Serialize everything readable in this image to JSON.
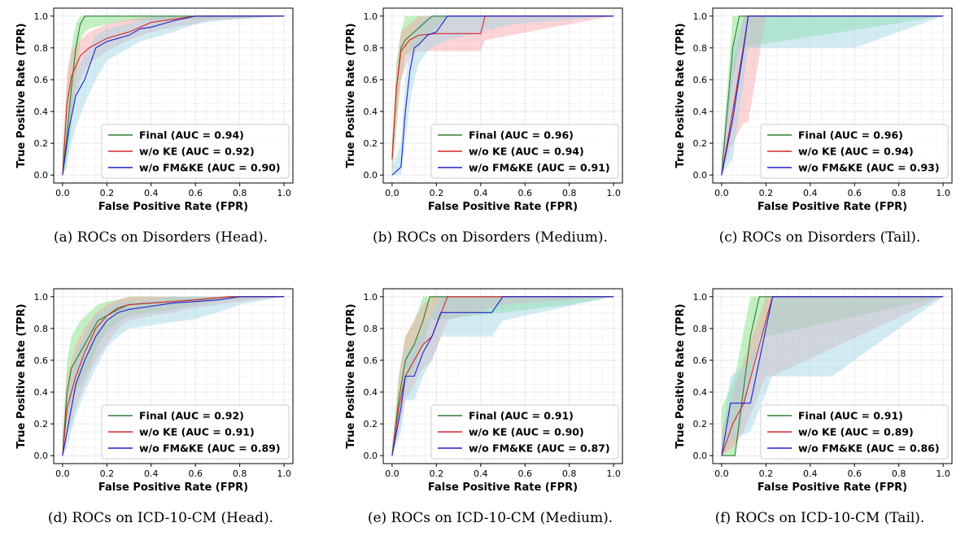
{
  "figure": {
    "series_colors": {
      "Final": "#2e7d32",
      "w/o KE": "#d62728",
      "w/o FM&KE": "#1f1fcc"
    },
    "band_colors": {
      "Final": "#7be07b",
      "w/o KE": "#f7a1a6",
      "w/o FM&KE": "#9ed4e6"
    }
  },
  "chart_data": [
    {
      "type": "line",
      "caption": "(a) ROCs on Disorders (Head).",
      "xlabel": "False Positive Rate (FPR)",
      "ylabel": "True Positive Rate (TPR)",
      "xlim": [
        0,
        1
      ],
      "ylim": [
        0,
        1
      ],
      "xticks": [
        "0.0",
        "0.2",
        "0.4",
        "0.6",
        "0.8",
        "1.0"
      ],
      "yticks": [
        "0.0",
        "0.2",
        "0.4",
        "0.6",
        "0.8",
        "1.0"
      ],
      "grid": true,
      "legend": "lower right",
      "series": [
        {
          "name": "Final",
          "legend": "Final (AUC = 0.94)",
          "x": [
            0,
            0.02,
            0.04,
            0.06,
            0.08,
            0.1,
            0.12,
            0.2,
            0.3,
            0.6,
            1.0
          ],
          "y": [
            0,
            0.25,
            0.55,
            0.8,
            0.95,
            1.0,
            1.0,
            1.0,
            1.0,
            1.0,
            1.0
          ],
          "band_upper": [
            0.15,
            0.55,
            0.8,
            0.95,
            1.0,
            1.0,
            1.0,
            1.0,
            1.0,
            1.0,
            1.0
          ],
          "band_lower": [
            0,
            0.05,
            0.3,
            0.6,
            0.85,
            0.9,
            0.92,
            0.95,
            0.97,
            0.98,
            1.0
          ]
        },
        {
          "name": "w/o KE",
          "legend": "w/o KE (AUC = 0.92)",
          "x": [
            0,
            0.02,
            0.04,
            0.08,
            0.12,
            0.2,
            0.3,
            0.4,
            0.5,
            0.6,
            0.65,
            1.0
          ],
          "y": [
            0,
            0.45,
            0.62,
            0.75,
            0.8,
            0.86,
            0.9,
            0.96,
            0.98,
            1.0,
            1.0,
            1.0
          ],
          "band_upper": [
            0.1,
            0.65,
            0.78,
            0.85,
            0.9,
            0.95,
            0.98,
            1.0,
            1.0,
            1.0,
            1.0,
            1.0
          ],
          "band_lower": [
            0,
            0.2,
            0.4,
            0.6,
            0.7,
            0.78,
            0.85,
            0.9,
            0.93,
            0.95,
            0.97,
            1.0
          ]
        },
        {
          "name": "w/o FM&KE",
          "legend": "w/o FM&KE (AUC = 0.90)",
          "x": [
            0,
            0.03,
            0.06,
            0.1,
            0.15,
            0.2,
            0.3,
            0.35,
            0.4,
            0.5,
            0.6,
            0.7,
            1.0
          ],
          "y": [
            0,
            0.3,
            0.5,
            0.6,
            0.8,
            0.84,
            0.88,
            0.92,
            0.93,
            0.97,
            1.0,
            1.0,
            1.0
          ],
          "band_upper": [
            0.05,
            0.45,
            0.65,
            0.75,
            0.88,
            0.92,
            0.95,
            0.98,
            1.0,
            1.0,
            1.0,
            1.0,
            1.0
          ],
          "band_lower": [
            0,
            0.15,
            0.3,
            0.45,
            0.6,
            0.72,
            0.8,
            0.84,
            0.86,
            0.9,
            0.95,
            0.97,
            1.0
          ]
        }
      ]
    },
    {
      "type": "line",
      "caption": "(b) ROCs on Disorders (Medium).",
      "xlabel": "False Positive Rate (FPR)",
      "ylabel": "True Positive Rate (TPR)",
      "xlim": [
        0,
        1
      ],
      "ylim": [
        0,
        1
      ],
      "xticks": [
        "0.0",
        "0.2",
        "0.4",
        "0.6",
        "0.8",
        "1.0"
      ],
      "yticks": [
        "0.0",
        "0.2",
        "0.4",
        "0.6",
        "0.8",
        "1.0"
      ],
      "grid": true,
      "legend": "lower right",
      "series": [
        {
          "name": "Final",
          "legend": "Final (AUC = 0.96)",
          "x": [
            0,
            0.02,
            0.04,
            0.06,
            0.1,
            0.14,
            0.18,
            0.25,
            1.0
          ],
          "y": [
            0.1,
            0.55,
            0.8,
            0.85,
            0.9,
            0.95,
            1.0,
            1.0,
            1.0
          ],
          "band_upper": [
            0.2,
            0.7,
            0.9,
            1.0,
            1.0,
            1.0,
            1.0,
            1.0,
            1.0
          ],
          "band_lower": [
            0,
            0.3,
            0.6,
            0.75,
            0.8,
            0.85,
            0.9,
            1.0,
            1.0
          ]
        },
        {
          "name": "w/o KE",
          "legend": "w/o KE (AUC = 0.94)",
          "x": [
            0,
            0.02,
            0.04,
            0.08,
            0.12,
            0.2,
            0.3,
            0.4,
            0.42,
            1.0
          ],
          "y": [
            0.1,
            0.55,
            0.78,
            0.85,
            0.88,
            0.89,
            0.89,
            0.89,
            1.0,
            1.0
          ],
          "band_upper": [
            0.2,
            0.7,
            0.9,
            0.95,
            1.0,
            1.0,
            1.0,
            1.0,
            1.0,
            1.0
          ],
          "band_lower": [
            0,
            0.35,
            0.6,
            0.75,
            0.78,
            0.78,
            0.78,
            0.78,
            0.85,
            1.0
          ]
        },
        {
          "name": "w/o FM&KE",
          "legend": "w/o FM&KE (AUC = 0.91)",
          "x": [
            0,
            0.04,
            0.06,
            0.08,
            0.1,
            0.12,
            0.16,
            0.2,
            0.25,
            0.4,
            0.55,
            1.0
          ],
          "y": [
            0,
            0.05,
            0.4,
            0.65,
            0.8,
            0.82,
            0.88,
            0.9,
            1.0,
            1.0,
            1.0,
            1.0
          ],
          "band_upper": [
            0.05,
            0.2,
            0.6,
            0.8,
            0.9,
            0.95,
            1.0,
            1.0,
            1.0,
            1.0,
            1.0,
            1.0
          ],
          "band_lower": [
            0,
            0,
            0.2,
            0.45,
            0.6,
            0.7,
            0.78,
            0.82,
            0.85,
            0.9,
            0.95,
            1.0
          ]
        }
      ]
    },
    {
      "type": "line",
      "caption": "(c) ROCs on Disorders (Tail).",
      "xlabel": "False Positive Rate (FPR)",
      "ylabel": "True Positive Rate (TPR)",
      "xlim": [
        0,
        1
      ],
      "ylim": [
        0,
        1
      ],
      "xticks": [
        "0.0",
        "0.2",
        "0.4",
        "0.6",
        "0.8",
        "1.0"
      ],
      "yticks": [
        "0.0",
        "0.2",
        "0.4",
        "0.6",
        "0.8",
        "1.0"
      ],
      "grid": true,
      "legend": "lower right",
      "series": [
        {
          "name": "Final",
          "legend": "Final (AUC = 0.96)",
          "x": [
            0,
            0.05,
            0.08,
            1.0
          ],
          "y": [
            0,
            0.8,
            1.0,
            1.0
          ],
          "band_upper": [
            0.1,
            1.0,
            1.0,
            1.0
          ],
          "band_lower": [
            0,
            0.6,
            0.8,
            1.0
          ]
        },
        {
          "name": "w/o KE",
          "legend": "w/o KE (AUC = 0.94)",
          "x": [
            0,
            0.05,
            0.1,
            0.12,
            0.2,
            1.0
          ],
          "y": [
            0,
            0.4,
            0.82,
            1.0,
            1.0,
            1.0
          ],
          "band_upper": [
            0.1,
            0.7,
            1.0,
            1.0,
            1.0,
            1.0
          ],
          "band_lower": [
            0,
            0.2,
            0.33,
            0.33,
            1.0,
            1.0
          ]
        },
        {
          "name": "w/o FM&KE",
          "legend": "w/o FM&KE (AUC = 0.93)",
          "x": [
            0,
            0.05,
            0.1,
            0.12,
            0.6,
            1.0
          ],
          "y": [
            0,
            0.35,
            0.8,
            1.0,
            1.0,
            1.0
          ],
          "band_upper": [
            0.1,
            0.8,
            1.0,
            1.0,
            1.0,
            1.0
          ],
          "band_lower": [
            0,
            0.1,
            0.6,
            0.8,
            0.8,
            1.0
          ]
        }
      ]
    },
    {
      "type": "line",
      "caption": "(d) ROCs on ICD-10-CM (Head).",
      "xlabel": "False Positive Rate (FPR)",
      "ylabel": "True Positive Rate (TPR)",
      "xlim": [
        0,
        1
      ],
      "ylim": [
        0,
        1
      ],
      "xticks": [
        "0.0",
        "0.2",
        "0.4",
        "0.6",
        "0.8",
        "1.0"
      ],
      "yticks": [
        "0.0",
        "0.2",
        "0.4",
        "0.6",
        "0.8",
        "1.0"
      ],
      "grid": true,
      "legend": "lower right",
      "series": [
        {
          "name": "Final",
          "legend": "Final (AUC = 0.92)",
          "x": [
            0,
            0.02,
            0.04,
            0.08,
            0.12,
            0.16,
            0.2,
            0.25,
            0.3,
            0.4,
            0.5,
            0.6,
            0.75,
            1.0
          ],
          "y": [
            0,
            0.4,
            0.55,
            0.65,
            0.75,
            0.85,
            0.88,
            0.92,
            0.95,
            0.96,
            0.97,
            0.98,
            1.0,
            1.0
          ],
          "band_upper": [
            0.1,
            0.6,
            0.75,
            0.85,
            0.9,
            0.95,
            0.97,
            0.98,
            1.0,
            1.0,
            1.0,
            1.0,
            1.0,
            1.0
          ],
          "band_lower": [
            0,
            0.2,
            0.35,
            0.45,
            0.55,
            0.7,
            0.78,
            0.84,
            0.88,
            0.9,
            0.92,
            0.95,
            0.98,
            1.0
          ]
        },
        {
          "name": "w/o KE",
          "legend": "w/o KE (AUC = 0.91)",
          "x": [
            0,
            0.02,
            0.06,
            0.1,
            0.15,
            0.2,
            0.25,
            0.3,
            0.4,
            0.5,
            0.6,
            0.75,
            1.0
          ],
          "y": [
            0,
            0.3,
            0.5,
            0.65,
            0.8,
            0.88,
            0.93,
            0.95,
            0.96,
            0.97,
            0.98,
            1.0,
            1.0
          ],
          "band_upper": [
            0.1,
            0.5,
            0.7,
            0.8,
            0.9,
            0.95,
            0.98,
            1.0,
            1.0,
            1.0,
            1.0,
            1.0,
            1.0
          ],
          "band_lower": [
            0,
            0.1,
            0.3,
            0.45,
            0.6,
            0.7,
            0.8,
            0.85,
            0.88,
            0.9,
            0.93,
            0.96,
            1.0
          ]
        },
        {
          "name": "w/o FM&KE",
          "legend": "w/o FM&KE (AUC = 0.89)",
          "x": [
            0,
            0.02,
            0.06,
            0.1,
            0.15,
            0.2,
            0.25,
            0.3,
            0.4,
            0.5,
            0.6,
            0.7,
            0.8,
            1.0
          ],
          "y": [
            0,
            0.15,
            0.45,
            0.6,
            0.75,
            0.85,
            0.9,
            0.92,
            0.94,
            0.96,
            0.97,
            0.98,
            1.0,
            1.0
          ],
          "band_upper": [
            0.05,
            0.35,
            0.65,
            0.75,
            0.88,
            0.93,
            0.96,
            0.97,
            0.98,
            1.0,
            1.0,
            1.0,
            1.0,
            1.0
          ],
          "band_lower": [
            0,
            0.05,
            0.25,
            0.4,
            0.55,
            0.68,
            0.75,
            0.8,
            0.82,
            0.84,
            0.86,
            0.9,
            0.95,
            1.0
          ]
        }
      ]
    },
    {
      "type": "line",
      "caption": "(e) ROCs on ICD-10-CM (Medium).",
      "xlabel": "False Positive Rate (FPR)",
      "ylabel": "True Positive Rate (TPR)",
      "xlim": [
        0,
        1
      ],
      "ylim": [
        0,
        1
      ],
      "xticks": [
        "0.0",
        "0.2",
        "0.4",
        "0.6",
        "0.8",
        "1.0"
      ],
      "yticks": [
        "0.0",
        "0.2",
        "0.4",
        "0.6",
        "0.8",
        "1.0"
      ],
      "grid": true,
      "legend": "lower right",
      "series": [
        {
          "name": "Final",
          "legend": "Final (AUC = 0.91)",
          "x": [
            0,
            0.03,
            0.06,
            0.1,
            0.14,
            0.17,
            0.5,
            0.8,
            1.0
          ],
          "y": [
            0,
            0.35,
            0.6,
            0.7,
            0.85,
            1.0,
            1.0,
            1.0,
            1.0
          ],
          "band_upper": [
            0.05,
            0.5,
            0.75,
            0.85,
            1.0,
            1.0,
            1.0,
            1.0,
            1.0
          ],
          "band_lower": [
            0,
            0.2,
            0.45,
            0.55,
            0.7,
            0.85,
            0.9,
            0.95,
            1.0
          ]
        },
        {
          "name": "w/o KE",
          "legend": "w/o KE (AUC = 0.90)",
          "x": [
            0,
            0.03,
            0.06,
            0.1,
            0.14,
            0.18,
            0.25,
            0.5,
            1.0
          ],
          "y": [
            0,
            0.3,
            0.5,
            0.6,
            0.7,
            0.75,
            1.0,
            1.0,
            1.0
          ],
          "band_upper": [
            0.05,
            0.5,
            0.75,
            0.85,
            0.95,
            1.0,
            1.0,
            1.0,
            1.0
          ],
          "band_lower": [
            0,
            0.15,
            0.35,
            0.45,
            0.55,
            0.6,
            0.85,
            0.95,
            1.0
          ]
        },
        {
          "name": "w/o FM&KE",
          "legend": "w/o FM&KE (AUC = 0.87)",
          "x": [
            0,
            0.04,
            0.06,
            0.1,
            0.14,
            0.18,
            0.22,
            0.3,
            0.45,
            0.5,
            1.0
          ],
          "y": [
            0,
            0.3,
            0.5,
            0.5,
            0.65,
            0.75,
            0.9,
            0.9,
            0.9,
            1.0,
            1.0
          ],
          "band_upper": [
            0.05,
            0.45,
            0.65,
            0.7,
            0.8,
            0.9,
            1.0,
            1.0,
            1.0,
            1.0,
            1.0
          ],
          "band_lower": [
            0,
            0.15,
            0.35,
            0.35,
            0.5,
            0.6,
            0.75,
            0.75,
            0.75,
            0.85,
            1.0
          ]
        }
      ]
    },
    {
      "type": "line",
      "caption": "(f) ROCs on ICD-10-CM (Tail).",
      "xlabel": "False Positive Rate (FPR)",
      "ylabel": "True Positive Rate (TPR)",
      "xlim": [
        0,
        1
      ],
      "ylim": [
        0,
        1
      ],
      "xticks": [
        "0.0",
        "0.2",
        "0.4",
        "0.6",
        "0.8",
        "1.0"
      ],
      "yticks": [
        "0.0",
        "0.2",
        "0.4",
        "0.6",
        "0.8",
        "1.0"
      ],
      "grid": true,
      "legend": "lower right",
      "series": [
        {
          "name": "Final",
          "legend": "Final (AUC = 0.91)",
          "x": [
            0,
            0.06,
            0.13,
            0.17,
            0.2,
            1.0
          ],
          "y": [
            0,
            0.0,
            0.75,
            1.0,
            1.0,
            1.0
          ],
          "band_upper": [
            0.3,
            0.5,
            1.0,
            1.0,
            1.0,
            1.0
          ],
          "band_lower": [
            0,
            0,
            0.5,
            0.75,
            0.75,
            1.0
          ]
        },
        {
          "name": "w/o KE",
          "legend": "w/o KE (AUC = 0.89)",
          "x": [
            0,
            0.05,
            0.1,
            0.2,
            0.23,
            1.0
          ],
          "y": [
            0,
            0.2,
            0.33,
            0.85,
            1.0,
            1.0
          ],
          "band_upper": [
            0.15,
            0.4,
            0.6,
            1.0,
            1.0,
            1.0
          ],
          "band_lower": [
            0,
            0.05,
            0.15,
            0.5,
            0.5,
            1.0
          ]
        },
        {
          "name": "w/o FM&KE",
          "legend": "w/o FM&KE (AUC = 0.86)",
          "x": [
            0,
            0.04,
            0.13,
            0.23,
            0.5,
            1.0
          ],
          "y": [
            0,
            0.33,
            0.33,
            1.0,
            1.0,
            1.0
          ],
          "band_upper": [
            0.1,
            0.5,
            0.6,
            1.0,
            1.0,
            1.0
          ],
          "band_lower": [
            0,
            0.1,
            0.15,
            0.5,
            0.5,
            1.0
          ]
        }
      ]
    }
  ]
}
